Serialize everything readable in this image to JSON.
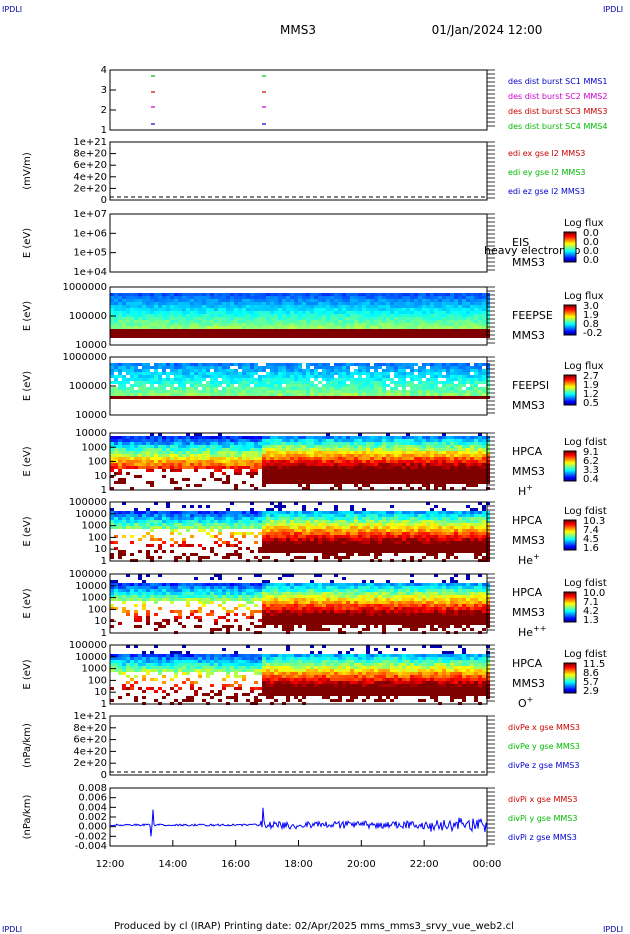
{
  "corner_label": "IPDLI",
  "header": {
    "title": "MMS3",
    "date": "01/Jan/2024 12:00"
  },
  "footer": {
    "text": "Produced by cl (IRAP)    Printing date: 02/Apr/2025    mms_mms3_srvy_vue_web2.cl"
  },
  "colors": {
    "frame": "#000000",
    "mms1": "#0000cc",
    "mms2": "#cc00cc",
    "mms3": "#cc0000",
    "mms4": "#00bb00"
  },
  "chart_data": {
    "type": "multi-panel",
    "x_ticks": [
      "12:00",
      "14:00",
      "16:00",
      "18:00",
      "20:00",
      "22:00",
      "00:00"
    ],
    "panels": [
      {
        "type": "scatter",
        "ylabel": "",
        "yticks": [
          "4",
          "3",
          "2",
          "1"
        ],
        "legend": [
          "des dist burst SC1 MMS1",
          "des dist burst SC2 MMS2",
          "des dist burst SC3 MMS3",
          "des dist burst SC4 MMS4"
        ]
      },
      {
        "type": "line",
        "ylabel": "(mV/m)",
        "yticks": [
          "1e+21",
          "8e+20",
          "6e+20",
          "4e+20",
          "2e+20",
          "0"
        ],
        "legend": [
          "edi ex gse l2 MMS3",
          "edi ey gse l2 MMS3",
          "edi ez gse l2 MMS3"
        ]
      },
      {
        "type": "heatmap",
        "ylabel": "E (eV)",
        "yticks": [
          "1e+07",
          "1e+06",
          "1e+05",
          "1e+04"
        ],
        "labels": [
          "EIS",
          "MMS3"
        ],
        "overlay_text": "heavy electron to",
        "colorbar": {
          "title": "Log flux",
          "ticks": [
            "0.0",
            "0.0",
            "0.0",
            "0.0"
          ]
        }
      },
      {
        "type": "heatmap",
        "ylabel": "E (eV)",
        "yticks": [
          "1000000",
          "100000",
          "10000"
        ],
        "labels": [
          "FEEPSE",
          "MMS3"
        ],
        "colorbar": {
          "title": "Log flux",
          "ticks": [
            "3.0",
            "1.9",
            "0.8",
            "-0.2"
          ]
        }
      },
      {
        "type": "heatmap",
        "ylabel": "E (eV)",
        "yticks": [
          "1000000",
          "100000",
          "10000"
        ],
        "labels": [
          "FEEPSI",
          "MMS3"
        ],
        "colorbar": {
          "title": "Log flux",
          "ticks": [
            "2.7",
            "1.9",
            "1.2",
            "0.5"
          ]
        }
      },
      {
        "type": "heatmap",
        "ylabel": "E (eV)",
        "yticks": [
          "10000",
          "1000",
          "100",
          "10",
          "1"
        ],
        "labels": [
          "HPCA",
          "MMS3"
        ],
        "species": "H",
        "species_sup": "+",
        "colorbar": {
          "title": "Log fdist",
          "ticks": [
            "9.1",
            "6.2",
            "3.3",
            "0.4"
          ]
        }
      },
      {
        "type": "heatmap",
        "ylabel": "E (eV)",
        "yticks": [
          "100000",
          "10000",
          "1000",
          "100",
          "10",
          "1"
        ],
        "labels": [
          "HPCA",
          "MMS3"
        ],
        "species": "He",
        "species_sup": "+",
        "colorbar": {
          "title": "Log fdist",
          "ticks": [
            "10.3",
            "7.4",
            "4.5",
            "1.6"
          ]
        }
      },
      {
        "type": "heatmap",
        "ylabel": "E (eV)",
        "yticks": [
          "100000",
          "10000",
          "1000",
          "100",
          "10",
          "1"
        ],
        "labels": [
          "HPCA",
          "MMS3"
        ],
        "species": "He",
        "species_sup": "++",
        "colorbar": {
          "title": "Log fdist",
          "ticks": [
            "10.0",
            "7.1",
            "4.2",
            "1.3"
          ]
        }
      },
      {
        "type": "heatmap",
        "ylabel": "E (eV)",
        "yticks": [
          "100000",
          "10000",
          "1000",
          "100",
          "10",
          "1"
        ],
        "labels": [
          "HPCA",
          "MMS3"
        ],
        "species": "O",
        "species_sup": "+",
        "colorbar": {
          "title": "Log fdist",
          "ticks": [
            "11.5",
            "8.6",
            "5.7",
            "2.9"
          ]
        }
      },
      {
        "type": "line",
        "ylabel": "(nPa/km)",
        "yticks": [
          "1e+21",
          "8e+20",
          "6e+20",
          "4e+20",
          "2e+20",
          "0"
        ],
        "legend": [
          "divPe x gse MMS3",
          "divPe y gse MMS3",
          "divPe z gse MMS3"
        ]
      },
      {
        "type": "line",
        "ylabel": "(nPa/km)",
        "yticks": [
          "0.008",
          "0.006",
          "0.004",
          "0.002",
          "0.000",
          "-0.002",
          "-0.004"
        ],
        "legend": [
          "divPi x gse MMS3",
          "divPi y gse MMS3",
          "divPi z gse MMS3"
        ]
      }
    ]
  }
}
